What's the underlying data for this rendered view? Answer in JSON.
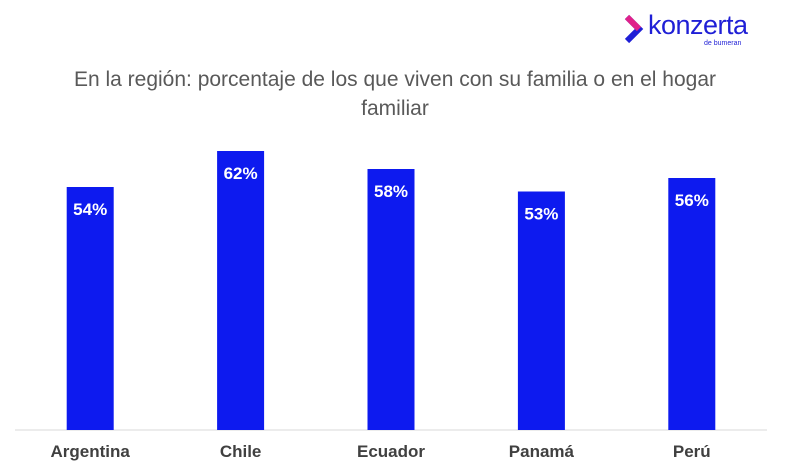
{
  "brand": {
    "name": "konzerta",
    "tagline": "de bumeran",
    "color": "#1f1fd6",
    "accent": "#e0218a"
  },
  "chart_data": {
    "type": "bar",
    "title": "En la región: porcentaje de los que viven con su familia o en el hogar familiar",
    "categories": [
      "Argentina",
      "Chile",
      "Ecuador",
      "Panamá",
      "Perú"
    ],
    "values": [
      54,
      62,
      58,
      53,
      56
    ],
    "value_suffix": "%",
    "bar_color": "#0d1aef",
    "axis_color": "#d9d9d9",
    "grid": false,
    "legend": "none"
  }
}
